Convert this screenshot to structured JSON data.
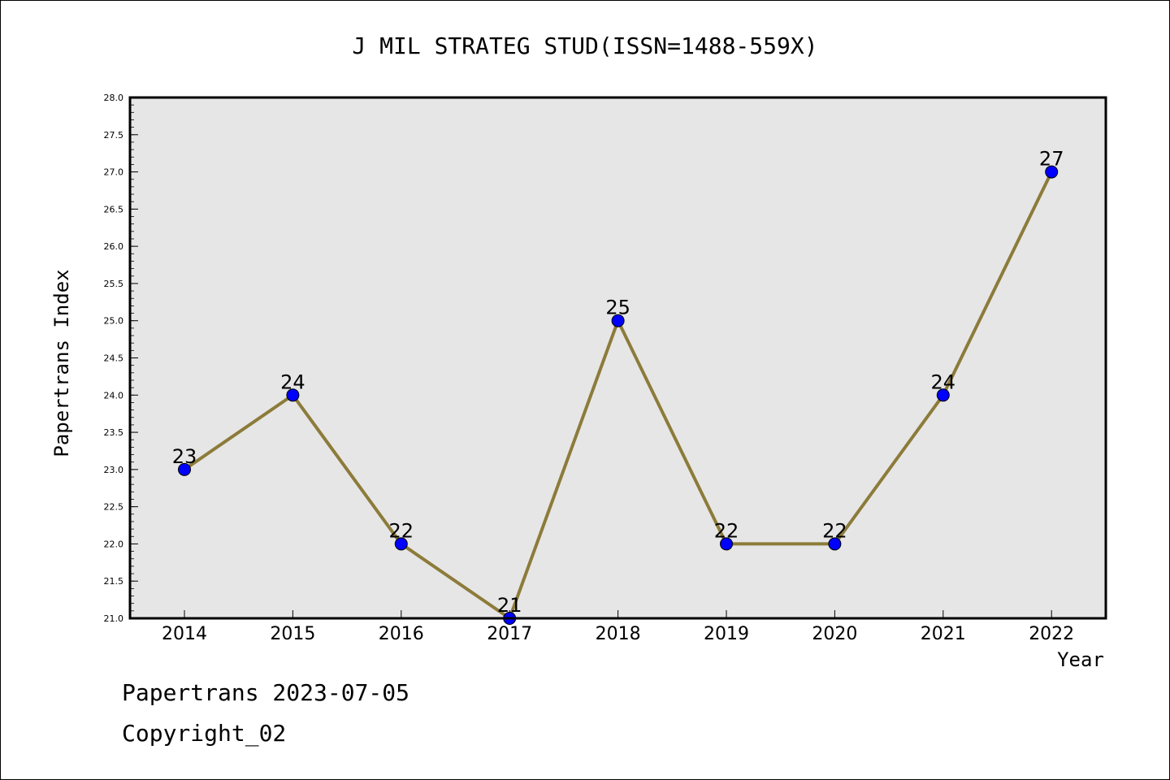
{
  "chart_data": {
    "type": "line",
    "title": "J MIL STRATEG STUD(ISSN=1488-559X)",
    "xlabel": "Year",
    "ylabel": "Papertrans Index",
    "categories": [
      "2014",
      "2015",
      "2016",
      "2017",
      "2018",
      "2019",
      "2020",
      "2021",
      "2022"
    ],
    "values": [
      23,
      24,
      22,
      21,
      25,
      22,
      22,
      24,
      27
    ],
    "data_labels": [
      "23",
      "24",
      "22",
      "21",
      "25",
      "22",
      "22",
      "24",
      "27"
    ],
    "ylim": [
      21.0,
      28.0
    ],
    "yticks": [
      "21.0",
      "21.5",
      "22.0",
      "22.5",
      "23.0",
      "23.5",
      "24.0",
      "24.5",
      "25.0",
      "25.5",
      "26.0",
      "26.5",
      "27.0",
      "27.5",
      "28.0"
    ],
    "grid": false,
    "legend": "none",
    "colors": {
      "line": "#8c7b3a",
      "marker": "#0000ff",
      "plot_background": "#e6e6e6"
    }
  },
  "footer": {
    "date_line": "Papertrans 2023-07-05",
    "copyright": "Copyright_02"
  }
}
